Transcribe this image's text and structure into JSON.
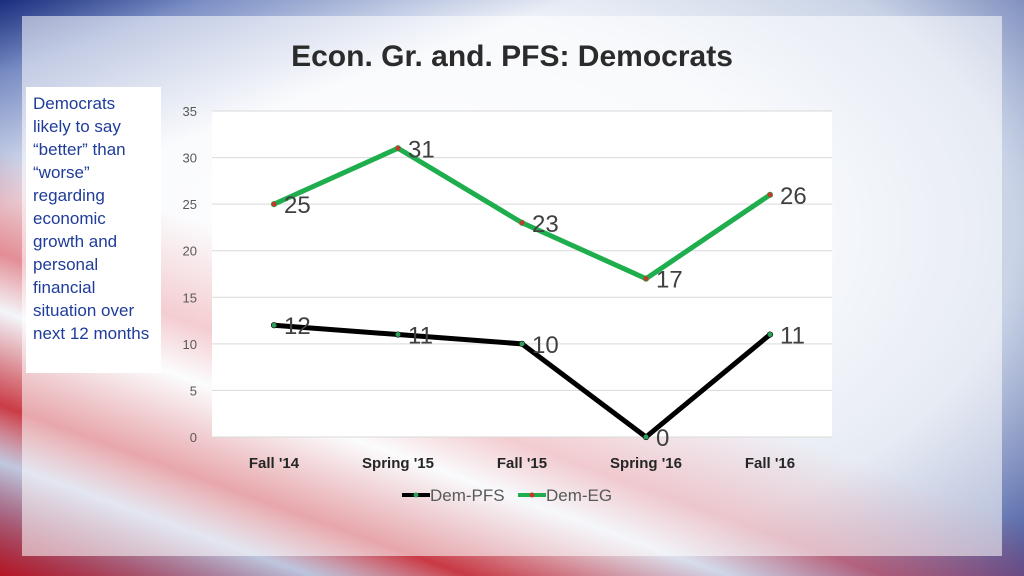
{
  "title": "Econ. Gr. and. PFS: Democrats",
  "note": "Democrats likely to say “better” than “worse” regarding economic growth and personal financial situation over next 12 months",
  "chart_data": {
    "type": "line",
    "title": "Econ. Gr. and. PFS: Democrats",
    "categories": [
      "Fall '14",
      "Spring '15",
      "Fall '15",
      "Spring '16",
      "Fall '16"
    ],
    "series": [
      {
        "name": "Dem-PFS",
        "values": [
          12,
          11,
          10,
          0,
          11
        ],
        "color": "#000000",
        "marker_color": "#2e9e5b"
      },
      {
        "name": "Dem-EG",
        "values": [
          25,
          31,
          23,
          17,
          26
        ],
        "color": "#1fae4e",
        "marker_color": "#c0392b"
      }
    ],
    "ylim": [
      0,
      35
    ],
    "yticks": [
      0,
      5,
      10,
      15,
      20,
      25,
      30,
      35
    ],
    "grid": true,
    "legend": "bottom",
    "xlabel": "",
    "ylabel": ""
  }
}
